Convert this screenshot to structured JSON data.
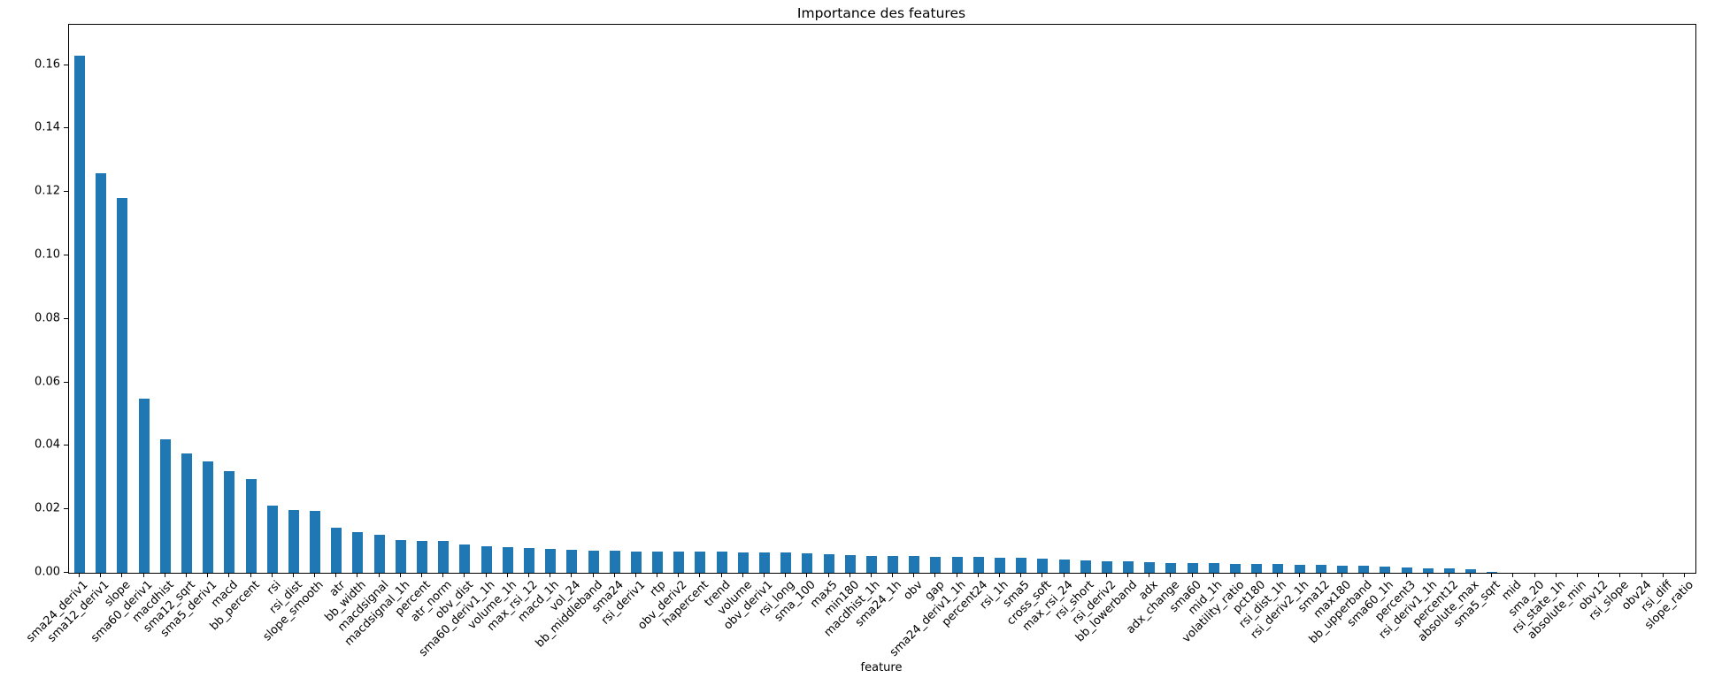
{
  "figure": {
    "background": "#ffffff",
    "axes_edge_color": "#000000",
    "text_color": "#000000"
  },
  "chart_data": {
    "type": "bar",
    "title": "Importance des features",
    "xlabel": "feature",
    "ylabel": "",
    "legend": null,
    "grid": false,
    "bar_color": "#1f77b4",
    "ylim": [
      0,
      0.1727
    ],
    "yticks": [
      "0.00",
      "0.02",
      "0.04",
      "0.06",
      "0.08",
      "0.10",
      "0.12",
      "0.14",
      "0.16"
    ],
    "x_tick_rotation": 45,
    "categories": [
      "sma24_deriv1",
      "sma12_deriv1",
      "slope",
      "sma60_deriv1",
      "macdhist",
      "sma12_sqrt",
      "sma5_deriv1",
      "macd",
      "bb_percent",
      "rsi",
      "rsi_dist",
      "slope_smooth",
      "atr",
      "bb_width",
      "macdsignal",
      "macdsignal_1h",
      "percent",
      "atr_norm",
      "obv_dist",
      "sma60_deriv1_1h",
      "volume_1h",
      "max_rsi_12",
      "macd_1h",
      "vol_24",
      "bb_middleband",
      "sma24",
      "rsi_deriv1",
      "rtp",
      "obv_deriv2",
      "hapercent",
      "trend",
      "volume",
      "obv_deriv1",
      "rsi_long",
      "sma_100",
      "max5",
      "min180",
      "macdhist_1h",
      "sma24_1h",
      "obv",
      "gap",
      "sma24_deriv1_1h",
      "percent24",
      "rsi_1h",
      "sma5",
      "cross_soft",
      "max_rsi_24",
      "rsi_short",
      "rsi_deriv2",
      "bb_lowerband",
      "adx",
      "adx_change",
      "sma60",
      "mid_1h",
      "volatility_ratio",
      "pct180",
      "rsi_dist_1h",
      "rsi_deriv2_1h",
      "sma12",
      "max180",
      "bb_upperband",
      "sma60_1h",
      "percent3",
      "rsi_deriv1_1h",
      "percent12",
      "absolute_max",
      "sma5_sqrt",
      "mid",
      "sma_20",
      "rsi_state_1h",
      "absolute_min",
      "obv12",
      "rsi_slope",
      "obv24",
      "rsi_diff",
      "slope_ratio"
    ],
    "values": [
      0.163,
      0.126,
      0.118,
      0.055,
      0.042,
      0.0375,
      0.035,
      0.032,
      0.0295,
      0.0213,
      0.0198,
      0.0196,
      0.0143,
      0.0127,
      0.012,
      0.0103,
      0.0101,
      0.01,
      0.009,
      0.0084,
      0.0081,
      0.0077,
      0.0075,
      0.0073,
      0.0071,
      0.0069,
      0.0068,
      0.0067,
      0.0067,
      0.0066,
      0.0066,
      0.0065,
      0.0065,
      0.0063,
      0.0061,
      0.0058,
      0.0056,
      0.0054,
      0.0053,
      0.0052,
      0.0051,
      0.0051,
      0.005,
      0.0048,
      0.0047,
      0.0045,
      0.0041,
      0.004,
      0.0037,
      0.0035,
      0.0034,
      0.0032,
      0.0031,
      0.003,
      0.0029,
      0.0028,
      0.0027,
      0.0026,
      0.0024,
      0.0023,
      0.0021,
      0.0019,
      0.0018,
      0.0015,
      0.0013,
      0.0012,
      0.0004,
      0,
      0,
      0,
      0,
      0,
      0,
      0,
      0,
      0
    ]
  }
}
